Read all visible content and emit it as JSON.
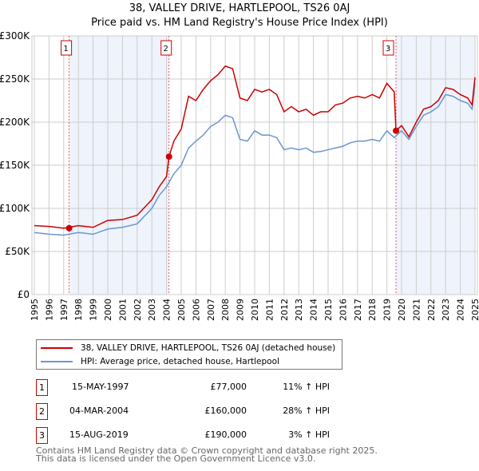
{
  "chart_data": {
    "type": "line",
    "title": "38, VALLEY DRIVE, HARTLEPOOL, TS26 0AJ",
    "subtitle": "Price paid vs. HM Land Registry's House Price Index (HPI)",
    "xlim": [
      1995,
      2025
    ],
    "ylim": [
      0,
      300000
    ],
    "y_ticks": [
      {
        "v": 0,
        "label": "£0"
      },
      {
        "v": 50000,
        "label": "£50K"
      },
      {
        "v": 100000,
        "label": "£100K"
      },
      {
        "v": 150000,
        "label": "£150K"
      },
      {
        "v": 200000,
        "label": "£200K"
      },
      {
        "v": 250000,
        "label": "£250K"
      },
      {
        "v": 300000,
        "label": "£300K"
      }
    ],
    "x_ticks": [
      "1995",
      "1996",
      "1997",
      "1998",
      "1999",
      "2000",
      "2001",
      "2002",
      "2003",
      "2004",
      "2005",
      "2006",
      "2007",
      "2008",
      "2009",
      "2010",
      "2011",
      "2012",
      "2013",
      "2014",
      "2015",
      "2016",
      "2017",
      "2018",
      "2019",
      "2020",
      "2021",
      "2022",
      "2023",
      "2024",
      "2025"
    ],
    "grid": true,
    "shaded_ranges": [
      [
        1997.37,
        2004.17
      ],
      [
        2019.62,
        2025
      ]
    ],
    "series": [
      {
        "name": "38, VALLEY DRIVE, HARTLEPOOL, TS26 0AJ (detached house)",
        "color": "#cc0000",
        "x": [
          1995,
          1996,
          1997,
          1998,
          1999,
          2000,
          2001,
          2002,
          2003,
          2003.5,
          2004,
          2004.17,
          2004.5,
          2005,
          2005.5,
          2006,
          2006.5,
          2007,
          2007.5,
          2008,
          2008.5,
          2009,
          2009.5,
          2010,
          2010.5,
          2011,
          2011.5,
          2012,
          2012.5,
          2013,
          2013.5,
          2014,
          2014.5,
          2015,
          2015.5,
          2016,
          2016.5,
          2017,
          2017.5,
          2018,
          2018.5,
          2019,
          2019.5,
          2019.62,
          2020,
          2020.5,
          2021,
          2021.5,
          2022,
          2022.5,
          2023,
          2023.5,
          2024,
          2024.5,
          2024.8,
          2025
        ],
        "y": [
          80000,
          79000,
          77000,
          80000,
          78000,
          86000,
          87000,
          92000,
          110000,
          125000,
          137000,
          160000,
          178000,
          192000,
          230000,
          225000,
          238000,
          248000,
          255000,
          265000,
          262000,
          228000,
          225000,
          238000,
          235000,
          238000,
          232000,
          212000,
          218000,
          212000,
          215000,
          208000,
          212000,
          212000,
          220000,
          222000,
          228000,
          230000,
          228000,
          232000,
          228000,
          245000,
          235000,
          190000,
          196000,
          183000,
          200000,
          215000,
          218000,
          225000,
          240000,
          238000,
          232000,
          228000,
          220000,
          252000
        ]
      },
      {
        "name": "HPI: Average price, detached house, Hartlepool",
        "color": "#6a96d0",
        "x": [
          1995,
          1996,
          1997,
          1998,
          1999,
          2000,
          2001,
          2002,
          2003,
          2003.5,
          2004,
          2004.5,
          2005,
          2005.5,
          2006,
          2006.5,
          2007,
          2007.5,
          2008,
          2008.5,
          2009,
          2009.5,
          2010,
          2010.5,
          2011,
          2011.5,
          2012,
          2012.5,
          2013,
          2013.5,
          2014,
          2014.5,
          2015,
          2015.5,
          2016,
          2016.5,
          2017,
          2017.5,
          2018,
          2018.5,
          2019,
          2019.5,
          2020,
          2020.5,
          2021,
          2021.5,
          2022,
          2022.5,
          2023,
          2023.5,
          2024,
          2024.5,
          2024.8,
          2025
        ],
        "y": [
          72000,
          70000,
          69000,
          72000,
          70000,
          76000,
          78000,
          82000,
          100000,
          115000,
          125000,
          140000,
          150000,
          170000,
          178000,
          185000,
          195000,
          200000,
          208000,
          205000,
          180000,
          178000,
          190000,
          185000,
          185000,
          182000,
          168000,
          170000,
          168000,
          170000,
          165000,
          166000,
          168000,
          170000,
          172000,
          176000,
          178000,
          178000,
          180000,
          178000,
          190000,
          182000,
          190000,
          180000,
          195000,
          208000,
          212000,
          218000,
          232000,
          230000,
          225000,
          222000,
          215000,
          245000
        ]
      }
    ],
    "markers": [
      {
        "id": "1",
        "x": 1997.37,
        "y": 77000
      },
      {
        "id": "2",
        "x": 2004.17,
        "y": 160000
      },
      {
        "id": "3",
        "x": 2019.62,
        "y": 190000
      }
    ]
  },
  "legend": {
    "property": "38, VALLEY DRIVE, HARTLEPOOL, TS26 0AJ (detached house)",
    "hpi": "HPI: Average price, detached house, Hartlepool"
  },
  "transactions": [
    {
      "id": "1",
      "date": "15-MAY-1997",
      "price": "£77,000",
      "hpi": "11% ↑ HPI"
    },
    {
      "id": "2",
      "date": "04-MAR-2004",
      "price": "£160,000",
      "hpi": "28% ↑ HPI"
    },
    {
      "id": "3",
      "date": "15-AUG-2019",
      "price": "£190,000",
      "hpi": "3% ↑ HPI"
    }
  ],
  "footer": {
    "line1": "Contains HM Land Registry data © Crown copyright and database right 2025.",
    "line2": "This data is licensed under the Open Government Licence v3.0."
  }
}
